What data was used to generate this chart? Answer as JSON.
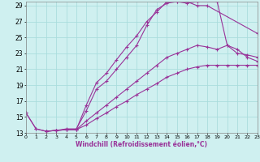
{
  "xlabel": "Windchill (Refroidissement éolien,°C)",
  "background_color": "#cff0f0",
  "grid_color": "#aadddd",
  "line_color": "#993399",
  "xlim": [
    0,
    23
  ],
  "ylim": [
    13,
    29.5
  ],
  "xticks": [
    0,
    1,
    2,
    3,
    4,
    5,
    6,
    7,
    8,
    9,
    10,
    11,
    12,
    13,
    14,
    15,
    16,
    17,
    18,
    19,
    20,
    21,
    22,
    23
  ],
  "yticks": [
    13,
    15,
    17,
    19,
    21,
    23,
    25,
    27,
    29
  ],
  "curves": [
    {
      "x": [
        0,
        1,
        2,
        3,
        4,
        5,
        6,
        7,
        8,
        9,
        10,
        11,
        12,
        13,
        14,
        15,
        16,
        17,
        18,
        23
      ],
      "y": [
        15.5,
        13.5,
        13.2,
        13.3,
        13.5,
        13.5,
        15.8,
        18.5,
        19.5,
        21.0,
        22.5,
        24.0,
        26.5,
        28.5,
        29.3,
        29.5,
        29.5,
        29.0,
        29.0,
        25.5
      ]
    },
    {
      "x": [
        0,
        1,
        2,
        3,
        4,
        5,
        6,
        7,
        8,
        9,
        10,
        11,
        12,
        13,
        14,
        15,
        16,
        17,
        19,
        20,
        21,
        22,
        23
      ],
      "y": [
        15.5,
        13.5,
        13.2,
        13.3,
        13.4,
        13.4,
        16.5,
        19.3,
        20.5,
        22.2,
        23.8,
        25.2,
        27.0,
        28.2,
        29.5,
        29.5,
        29.3,
        29.5,
        29.5,
        24.0,
        23.5,
        22.5,
        22.0
      ]
    },
    {
      "x": [
        2,
        3,
        4,
        5,
        6,
        7,
        8,
        9,
        10,
        11,
        12,
        13,
        14,
        15,
        16,
        17,
        18,
        19,
        20,
        21,
        22,
        23
      ],
      "y": [
        13.2,
        13.3,
        13.4,
        13.4,
        14.5,
        15.5,
        16.5,
        17.5,
        18.5,
        19.5,
        20.5,
        21.5,
        22.5,
        23.0,
        23.5,
        24.0,
        23.8,
        23.5,
        24.0,
        23.0,
        22.8,
        22.5
      ]
    },
    {
      "x": [
        2,
        3,
        4,
        5,
        6,
        7,
        8,
        9,
        10,
        11,
        12,
        13,
        14,
        15,
        16,
        17,
        18,
        19,
        20,
        21,
        22,
        23
      ],
      "y": [
        13.2,
        13.3,
        13.4,
        13.4,
        14.0,
        14.8,
        15.5,
        16.3,
        17.0,
        17.8,
        18.5,
        19.2,
        20.0,
        20.5,
        21.0,
        21.3,
        21.5,
        21.5,
        21.5,
        21.5,
        21.5,
        21.5
      ]
    }
  ]
}
